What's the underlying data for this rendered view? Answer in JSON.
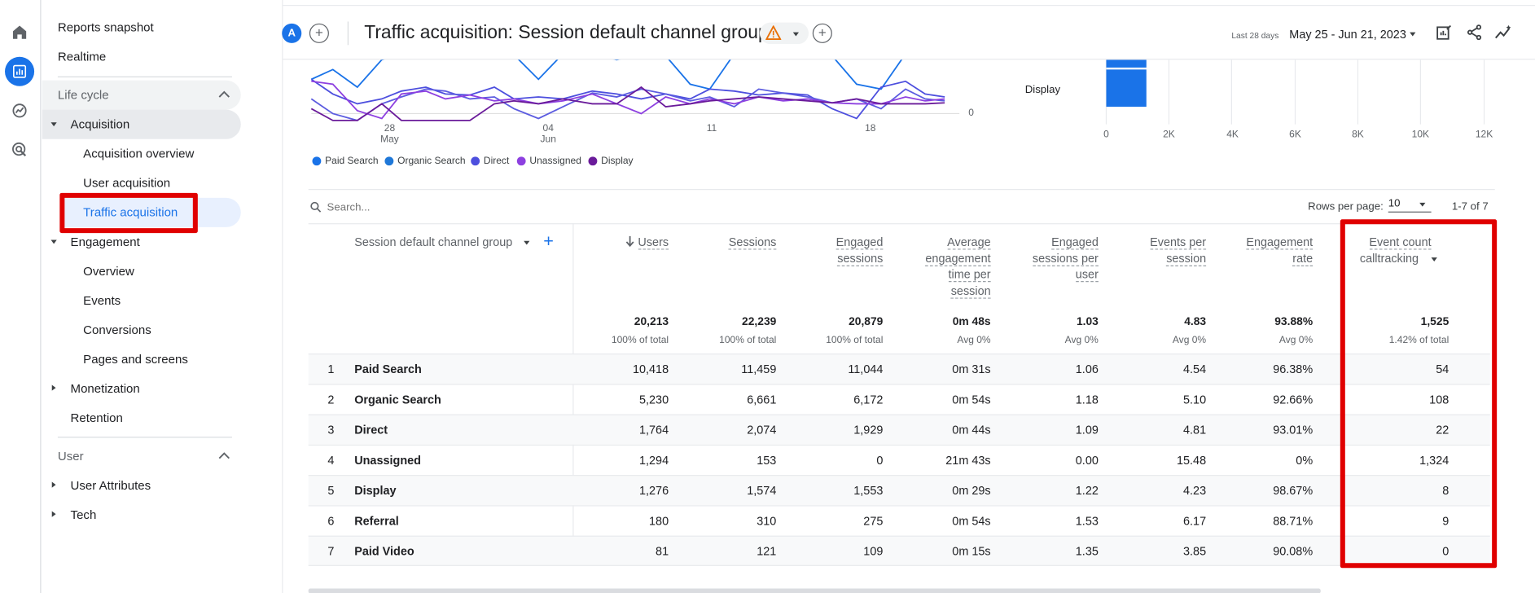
{
  "sidebar": {
    "top_items": [
      "Reports snapshot",
      "Realtime"
    ],
    "lifecycle_label": "Life cycle",
    "acquisition": {
      "label": "Acquisition",
      "children": [
        "Acquisition overview",
        "User acquisition",
        "Traffic acquisition"
      ]
    },
    "engagement": {
      "label": "Engagement",
      "children": [
        "Overview",
        "Events",
        "Conversions",
        "Pages and screens"
      ]
    },
    "monetization": "Monetization",
    "retention": "Retention",
    "user_label": "User",
    "user_attributes": "User Attributes",
    "tech": "Tech",
    "selected": "Traffic acquisition"
  },
  "header": {
    "avatar_letter": "A",
    "title": "Traffic acquisition: Session default channel group",
    "date_caption": "Last 28 days",
    "date_range": "May 25 - Jun 21, 2023"
  },
  "line_chart": {
    "x_ticks": [
      {
        "day": "28",
        "month": "May"
      },
      {
        "day": "04",
        "month": "Jun"
      },
      {
        "day": "11",
        "month": ""
      },
      {
        "day": "18",
        "month": ""
      }
    ],
    "zero_label": "0",
    "legend": [
      {
        "name": "Paid Search",
        "color": "#1a73e8"
      },
      {
        "name": "Organic Search",
        "color": "#1f78d8"
      },
      {
        "name": "Direct",
        "color": "#4d4fde"
      },
      {
        "name": "Unassigned",
        "color": "#8d40e0"
      },
      {
        "name": "Display",
        "color": "#6a1b9a"
      }
    ]
  },
  "bar_chart": {
    "category": "Display",
    "x_ticks": [
      "0",
      "2K",
      "4K",
      "6K",
      "8K",
      "10K",
      "12K"
    ],
    "bar_color": "#1a73e8"
  },
  "table_tools": {
    "search_placeholder": "Search...",
    "rows_per_page_label": "Rows per page:",
    "rows_per_page": "10",
    "range": "1-7 of 7"
  },
  "table": {
    "dimension_header": "Session default channel group",
    "columns": [
      {
        "lines": [
          "Users"
        ],
        "total": "20,213",
        "sub": "100% of total",
        "sorted": true
      },
      {
        "lines": [
          "Sessions"
        ],
        "total": "22,239",
        "sub": "100% of total"
      },
      {
        "lines": [
          "Engaged",
          "sessions"
        ],
        "total": "20,879",
        "sub": "100% of total"
      },
      {
        "lines": [
          "Average",
          "engagement",
          "time per",
          "session"
        ],
        "total": "0m 48s",
        "sub": "Avg 0%"
      },
      {
        "lines": [
          "Engaged",
          "sessions per",
          "user"
        ],
        "total": "1.03",
        "sub": "Avg 0%"
      },
      {
        "lines": [
          "Events per",
          "session"
        ],
        "total": "4.83",
        "sub": "Avg 0%"
      },
      {
        "lines": [
          "Engagement",
          "rate"
        ],
        "total": "93.88%",
        "sub": "Avg 0%"
      },
      {
        "lines": [
          "Event count"
        ],
        "filter": "calltracking",
        "total": "1,525",
        "sub": "1.42% of total"
      }
    ],
    "rows": [
      {
        "idx": "1",
        "channel": "Paid Search",
        "values": [
          "10,418",
          "11,459",
          "11,044",
          "0m 31s",
          "1.06",
          "4.54",
          "96.38%",
          "54"
        ]
      },
      {
        "idx": "2",
        "channel": "Organic Search",
        "values": [
          "5,230",
          "6,661",
          "6,172",
          "0m 54s",
          "1.18",
          "5.10",
          "92.66%",
          "108"
        ]
      },
      {
        "idx": "3",
        "channel": "Direct",
        "values": [
          "1,764",
          "2,074",
          "1,929",
          "0m 44s",
          "1.09",
          "4.81",
          "93.01%",
          "22"
        ]
      },
      {
        "idx": "4",
        "channel": "Unassigned",
        "values": [
          "1,294",
          "153",
          "0",
          "21m 43s",
          "0.00",
          "15.48",
          "0%",
          "1,324"
        ]
      },
      {
        "idx": "5",
        "channel": "Display",
        "values": [
          "1,276",
          "1,574",
          "1,553",
          "0m 29s",
          "1.22",
          "4.23",
          "98.67%",
          "8"
        ]
      },
      {
        "idx": "6",
        "channel": "Referral",
        "values": [
          "180",
          "310",
          "275",
          "0m 54s",
          "1.53",
          "6.17",
          "88.71%",
          "9"
        ]
      },
      {
        "idx": "7",
        "channel": "Paid Video",
        "values": [
          "81",
          "121",
          "109",
          "0m 15s",
          "1.35",
          "3.85",
          "90.08%",
          "0"
        ]
      }
    ]
  }
}
